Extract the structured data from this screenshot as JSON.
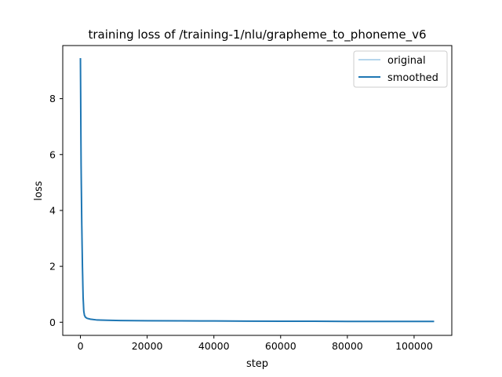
{
  "chart_data": {
    "type": "line",
    "title": "training loss of /training-1/nlu/grapheme_to_phoneme_v6",
    "xlabel": "step",
    "ylabel": "loss",
    "xlim": [
      -5300,
      111300
    ],
    "ylim": [
      -0.47,
      9.9
    ],
    "x_ticks": [
      0,
      20000,
      40000,
      60000,
      80000,
      100000
    ],
    "y_ticks": [
      0,
      2,
      4,
      6,
      8
    ],
    "grid": false,
    "legend_position": "top-right",
    "series": [
      {
        "name": "original",
        "color": "#9ec8e6",
        "x": [
          0,
          200,
          400,
          600,
          800,
          1000,
          1200,
          1500,
          2000,
          3000,
          5000,
          8000,
          12000,
          20000,
          30000,
          40000,
          50000,
          60000,
          70000,
          80000,
          90000,
          100000,
          106000
        ],
        "y": [
          9.45,
          5.6,
          3.5,
          2.0,
          0.9,
          0.4,
          0.25,
          0.18,
          0.14,
          0.11,
          0.08,
          0.07,
          0.06,
          0.055,
          0.05,
          0.045,
          0.04,
          0.035,
          0.035,
          0.03,
          0.03,
          0.03,
          0.03
        ]
      },
      {
        "name": "smoothed",
        "color": "#1f77b4",
        "x": [
          0,
          200,
          400,
          600,
          800,
          1000,
          1200,
          1500,
          2000,
          3000,
          5000,
          8000,
          12000,
          20000,
          30000,
          40000,
          50000,
          60000,
          70000,
          80000,
          90000,
          100000,
          106000
        ],
        "y": [
          9.45,
          5.6,
          3.5,
          2.0,
          0.9,
          0.4,
          0.25,
          0.18,
          0.14,
          0.11,
          0.08,
          0.07,
          0.06,
          0.055,
          0.05,
          0.045,
          0.04,
          0.035,
          0.035,
          0.03,
          0.03,
          0.03,
          0.03
        ]
      }
    ]
  }
}
